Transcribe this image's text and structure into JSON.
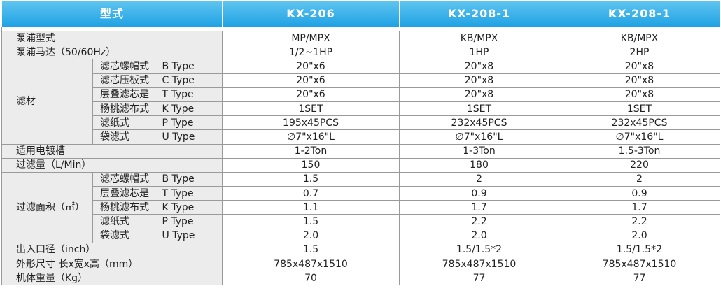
{
  "header": {
    "model_label": "型式",
    "models": [
      "KX-206",
      "KX-208-1",
      "KX-208-1"
    ]
  },
  "rows": {
    "pump_type": {
      "label": "泵浦型式",
      "values": [
        "MP/MPX",
        "KB/MPX",
        "KB/MPX"
      ]
    },
    "pump_motor": {
      "label": "泵浦马达（50/60Hz）",
      "values": [
        "1/2~1HP",
        "1HP",
        "2HP"
      ]
    },
    "filter_media": {
      "label": "滤材",
      "items": [
        {
          "name": "滤芯螺帽式",
          "type": "B Type",
          "values": [
            "20\"x6",
            "20\"x8",
            "20\"x8"
          ]
        },
        {
          "name": "滤芯压板式",
          "type": "C Type",
          "values": [
            "20\"x6",
            "20\"x8",
            "20\"x8"
          ]
        },
        {
          "name": "层叠滤芯是",
          "type": "T Type",
          "values": [
            "20\"x6",
            "20\"x8",
            "20\"x8"
          ]
        },
        {
          "name": "杨桃滤布式",
          "type": "K Type",
          "values": [
            "1SET",
            "1SET",
            "1SET"
          ]
        },
        {
          "name": "滤纸式",
          "type": "P Type",
          "values": [
            "195x45PCS",
            "232x45PCS",
            "232x45PCS"
          ]
        },
        {
          "name": "袋滤式",
          "type": "U Type",
          "values": [
            "∅7\"x16\"L",
            "∅7\"x16\"L",
            "∅7\"x16\"L"
          ]
        }
      ]
    },
    "plating_tank": {
      "label": "适用电镀槽",
      "values": [
        "1-2Ton",
        "1-3Ton",
        "1.5-3Ton"
      ]
    },
    "flow_rate": {
      "label": "过滤量（L/Min）",
      "values": [
        "150",
        "180",
        "220"
      ]
    },
    "filter_area": {
      "label": "过滤面积（㎡）",
      "items": [
        {
          "name": "滤芯螺帽式",
          "type": "B Type",
          "values": [
            "1.5",
            "2",
            "2"
          ]
        },
        {
          "name": "层叠滤芯是",
          "type": "T Type",
          "values": [
            "0.7",
            "0.9",
            "0.9"
          ]
        },
        {
          "name": "杨桃滤布式",
          "type": "K Type",
          "values": [
            "1.1",
            "1.7",
            "1.7"
          ]
        },
        {
          "name": "滤纸式",
          "type": "P Type",
          "values": [
            "1.5",
            "2.2",
            "2.2"
          ]
        },
        {
          "name": "袋滤式",
          "type": "U Type",
          "values": [
            "2.0",
            "2.0",
            "2.0"
          ]
        }
      ]
    },
    "port_diameter": {
      "label": "出入口径（inch）",
      "values": [
        "1.5",
        "1.5/1.5*2",
        "1.5/1.5*2"
      ]
    },
    "dimensions": {
      "label": "外形尺寸 长x宽x高（mm）",
      "values": [
        "785x487x1510",
        "785x487x1510",
        "785x487x1510"
      ]
    },
    "weight": {
      "label": "机体重量（Kg）",
      "values": [
        "70",
        "77",
        "77"
      ]
    }
  },
  "colors": {
    "header_blue": "#2aa8e6",
    "label_gray": "#ececec",
    "border": "#9a9a9a"
  }
}
